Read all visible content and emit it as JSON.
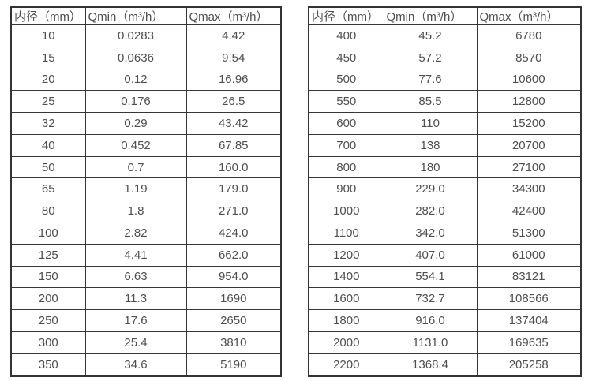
{
  "colors": {
    "background": "#ffffff",
    "table_border": "#333333",
    "cell_text": "#4f4f4f"
  },
  "chart_data": [
    {
      "type": "table",
      "columns": [
        "内径（mm）",
        "Qmin（m³/h）",
        "Qmax（m³/h）"
      ],
      "rows": [
        [
          "10",
          "0.0283",
          "4.42"
        ],
        [
          "15",
          "0.0636",
          "9.54"
        ],
        [
          "20",
          "0.12",
          "16.96"
        ],
        [
          "25",
          "0.176",
          "26.5"
        ],
        [
          "32",
          "0.29",
          "43.42"
        ],
        [
          "40",
          "0.452",
          "67.85"
        ],
        [
          "50",
          "0.7",
          "160.0"
        ],
        [
          "65",
          "1.19",
          "179.0"
        ],
        [
          "80",
          "1.8",
          "271.0"
        ],
        [
          "100",
          "2.82",
          "424.0"
        ],
        [
          "125",
          "4.41",
          "662.0"
        ],
        [
          "150",
          "6.63",
          "954.0"
        ],
        [
          "200",
          "11.3",
          "1690"
        ],
        [
          "250",
          "17.6",
          "2650"
        ],
        [
          "300",
          "25.4",
          "3810"
        ],
        [
          "350",
          "34.6",
          "5190"
        ]
      ]
    },
    {
      "type": "table",
      "columns": [
        "内径（mm）",
        "Qmin（m³/h）",
        "Qmax（m³/h）"
      ],
      "rows": [
        [
          "400",
          "45.2",
          "6780"
        ],
        [
          "450",
          "57.2",
          "8570"
        ],
        [
          "500",
          "77.6",
          "10600"
        ],
        [
          "550",
          "85.5",
          "12800"
        ],
        [
          "600",
          "110",
          "15200"
        ],
        [
          "700",
          "138",
          "20700"
        ],
        [
          "800",
          "180",
          "27100"
        ],
        [
          "900",
          "229.0",
          "34300"
        ],
        [
          "1000",
          "282.0",
          "42400"
        ],
        [
          "1100",
          "342.0",
          "51300"
        ],
        [
          "1200",
          "407.0",
          "61000"
        ],
        [
          "1400",
          "554.1",
          "83121"
        ],
        [
          "1600",
          "732.7",
          "108566"
        ],
        [
          "1800",
          "916.0",
          "137404"
        ],
        [
          "2000",
          "1131.0",
          "169635"
        ],
        [
          "2200",
          "1368.4",
          "205258"
        ]
      ]
    }
  ]
}
